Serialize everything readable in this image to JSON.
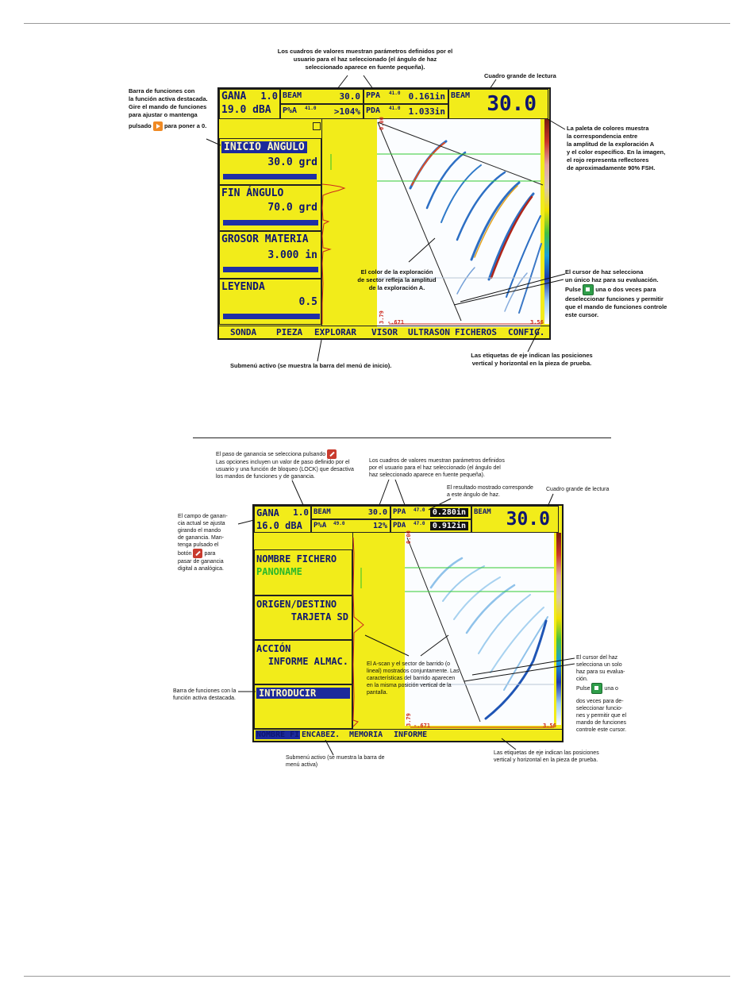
{
  "figure1": {
    "gain_label": "GANA",
    "gain_step": "1.0",
    "gain_value": "19.0 dBA",
    "box_beam_label": "BEAM",
    "box_beam_value": "30.0",
    "box_pa_label": "P%A",
    "box_pa_sup": "41.0",
    "box_pa_value": ">104%",
    "box_ppa_label": "PPA",
    "box_ppa_sup": "41.0",
    "box_ppa_value": "0.161in",
    "box_pda_label": "PDA",
    "box_pda_sup": "41.0",
    "box_pda_value": "1.033in",
    "big_label": "BEAM",
    "big_value": "30.0",
    "params": [
      {
        "title": "INICIO ÁNGULO",
        "value": "30.0 grd",
        "active": true
      },
      {
        "title": "FIN ÁNGULO",
        "value": "70.0 grd",
        "active": false
      },
      {
        "title": "GROSOR MATERIA",
        "value": "3.000 in",
        "active": false
      },
      {
        "title": "LEYENDA",
        "value": "0.5",
        "active": false
      }
    ],
    "menu": [
      "SONDA",
      "PIEZA",
      "EXPLORAR",
      "VISOR",
      "ULTRASON",
      "FICHEROS",
      "CONFIG."
    ],
    "axis_top": "0.00",
    "axis_left": "3.79",
    "axis_bottom_left": "-.671",
    "axis_bottom_right": "3.56",
    "annotations": {
      "top": "Los cuadros de valores muestran parámetros definidos por el usuario para el haz seleccionado (el ángulo de haz seleccionado aparece en fuente pequeña).",
      "big_reading": "Cuadro grande de lectura",
      "function_bar": [
        "Barra de funciones con",
        "la función activa destacada.",
        "Gire el mando de funciones",
        "para ajustar o mantenga"
      ],
      "function_bar_pulsado": "pulsado",
      "function_bar_end": "para poner a 0.",
      "palette": [
        "La paleta de colores muestra",
        "la correspondencia entre",
        "la amplitud de la exploración A",
        "y el color específico. En la imagen,",
        "el rojo representa reflectores",
        "de aproximadamente 90% FSH."
      ],
      "sector_color": [
        "El color de la exploración",
        "de sector refleja la amplitud",
        "de la exploración A."
      ],
      "cursor": [
        "El cursor de haz selecciona",
        "un único haz para su evaluación."
      ],
      "cursor_pulse": "Pulse",
      "cursor_rest": [
        "una o dos veces para",
        "deseleccionar funciones y permitir",
        "que el mando de funciones controle",
        "este cursor."
      ],
      "axis_labels": [
        "Las etiquetas de eje indican las posiciones",
        "vertical y horizontal en la pieza de prueba."
      ],
      "submenu": "Submenú activo (se muestra la barra del menú de inicio)."
    }
  },
  "figure2": {
    "gain_label": "GANA",
    "gain_step": "1.0",
    "gain_value": "16.0 dBA",
    "box_beam_label": "BEAM",
    "box_beam_value": "30.0",
    "box_pa_label": "P%A",
    "box_pa_sup": "49.0",
    "box_pa_value": "12%",
    "box_ppa_label": "PPA",
    "box_ppa_sup": "47.0",
    "box_ppa_value": "0.280in",
    "box_pda_label": "PDA",
    "box_pda_sup": "47.0",
    "box_pda_value": "0.912in",
    "big_label": "BEAM",
    "big_value": "30.0",
    "params": [
      {
        "title": "NOMBRE FICHERO",
        "value": "PANONAME",
        "active": false
      },
      {
        "title": "ORIGEN/DESTINO",
        "value": "TARJETA SD",
        "active": false
      },
      {
        "title": "ACCIÓN",
        "value": "INFORME ALMAC.",
        "active": false
      },
      {
        "title": "INTRODUCIR",
        "value": "",
        "active": true
      }
    ],
    "menu": [
      "NOMBRE FI",
      "ENCABEZ.",
      "MEMORIA",
      "INFORME"
    ],
    "axis_top": "0.00",
    "axis_left": "3.79",
    "axis_bottom_left": "-.671",
    "axis_bottom_right": "3.56",
    "annotations": {
      "gain_step": [
        "El paso de ganancia se selecciona pulsando",
        "Las opciones incluyen un valor de paso definido por el",
        "usuario y una función de bloqueo (LOCK) que desactiva",
        "los mandos de funciones y de ganancia."
      ],
      "top": [
        "Los cuadros de valores muestran parámetros definidos",
        "por el usuario para el haz seleccionado (el ángulo del",
        "haz seleccionado aparece en fuente pequeña)."
      ],
      "result": [
        "El resultado mostrado corresponde",
        "a este ángulo de haz."
      ],
      "big_reading": "Cuadro grande de lectura",
      "gain_field": [
        "El campo de ganan-",
        "cia actual se ajusta",
        "girando el mando",
        "de ganancia. Man-",
        "tenga pulsado el",
        "botón"
      ],
      "gain_field_para": "para",
      "gain_field_rest": [
        "pasar de ganancia",
        "digital a analógica."
      ],
      "function_bar": [
        "Barra de funciones con la",
        "función activa destacada."
      ],
      "ascan": [
        "El A-scan y el sector de barrido (o",
        "lineal) mostrados conjuntamente. Las",
        "características del barrido aparecen",
        "en la misma posición vertical de la",
        "pantalla."
      ],
      "cursor": [
        "El cursor del haz",
        "selecciona un solo",
        "haz para su evalua-",
        "ción."
      ],
      "cursor_pulse": "Pulse",
      "cursor_una": "una o",
      "cursor_rest": [
        "dos veces para de-",
        "seleccionar funcio-",
        "nes y permitir que el",
        "mando de funciones",
        "controle este cursor."
      ],
      "axis_labels": [
        "Las etiquetas de eje indican las posiciones",
        "vertical y horizontal en la pieza de prueba."
      ],
      "submenu": [
        "Submenú activo (se muestra la barra de",
        "menú activa)"
      ]
    }
  },
  "colors": {
    "screen_bg": "#f2ec1a",
    "text": "#0e1670",
    "highlight": "#1c2a9c",
    "key_orange": "#f08a24",
    "key_green": "#2f9e4a",
    "key_red": "#c93b2e"
  }
}
